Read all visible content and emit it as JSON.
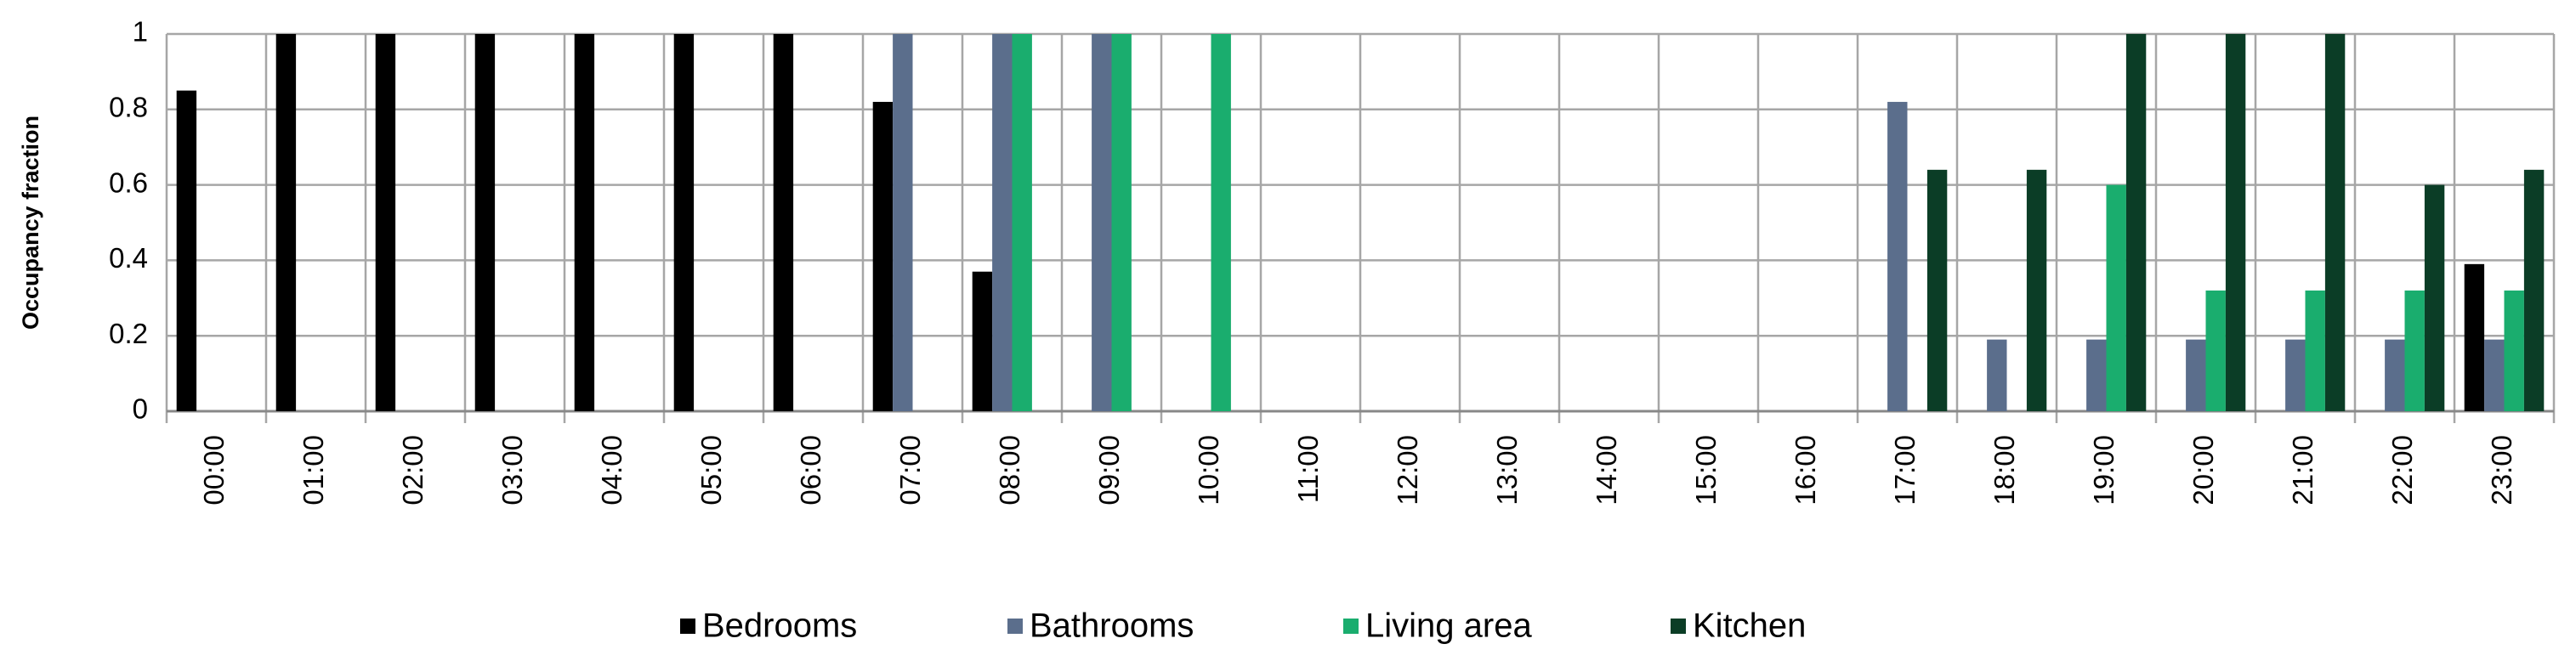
{
  "chart_data": {
    "type": "bar",
    "y_label": "Occupancy fraction",
    "categories": [
      "00:00",
      "01:00",
      "02:00",
      "03:00",
      "04:00",
      "05:00",
      "06:00",
      "07:00",
      "08:00",
      "09:00",
      "10:00",
      "11:00",
      "12:00",
      "13:00",
      "14:00",
      "15:00",
      "16:00",
      "17:00",
      "18:00",
      "19:00",
      "20:00",
      "21:00",
      "22:00",
      "23:00"
    ],
    "series": [
      {
        "name": "Bedrooms",
        "color": "#000000",
        "values": [
          0.85,
          1,
          1,
          1,
          1,
          1,
          1,
          0.82,
          0.37,
          0,
          0,
          0,
          0,
          0,
          0,
          0,
          0,
          0,
          0,
          0,
          0,
          0,
          0,
          0.39
        ]
      },
      {
        "name": "Bathrooms",
        "color": "#5b6e8c",
        "values": [
          0,
          0,
          0,
          0,
          0,
          0,
          0,
          1,
          1,
          1,
          0,
          0,
          0,
          0,
          0,
          0,
          0,
          0.82,
          0.19,
          0.19,
          0.19,
          0.19,
          0.19,
          0.19
        ]
      },
      {
        "name": "Living area",
        "color": "#1aad6e",
        "values": [
          0,
          0,
          0,
          0,
          0,
          0,
          0,
          0,
          1,
          1,
          1,
          0,
          0,
          0,
          0,
          0,
          0,
          0,
          0,
          0.6,
          0.32,
          0.32,
          0.32,
          0.32
        ]
      },
      {
        "name": "Kitchen",
        "color": "#0b3d26",
        "values": [
          0,
          0,
          0,
          0,
          0,
          0,
          0,
          0,
          0,
          0,
          0,
          0,
          0,
          0,
          0,
          0,
          0,
          0.64,
          0.64,
          1,
          1,
          1,
          0.6,
          0.64
        ]
      }
    ],
    "ylim": [
      0,
      1
    ],
    "yticks": [
      0,
      0.2,
      0.4,
      0.6,
      0.8,
      1
    ],
    "grid": true,
    "legend": "bottom"
  }
}
